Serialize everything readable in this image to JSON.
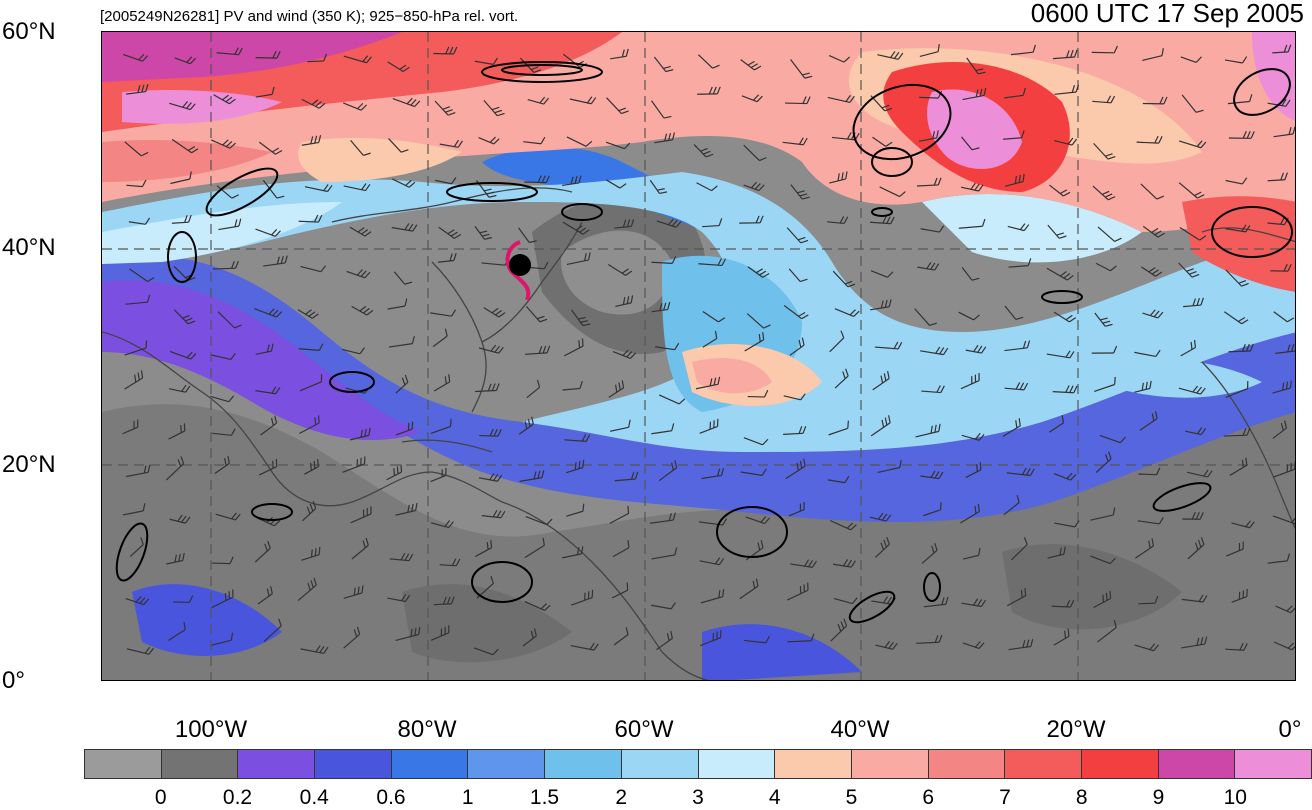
{
  "header": {
    "title_left": "[2005249N26281] PV and wind (350 K); 925−850-hPa rel. vort.",
    "title_right": "0600 UTC 17 Sep 2005"
  },
  "axes": {
    "lat_labels": [
      "60°N",
      "40°N",
      "20°N",
      "0°"
    ],
    "lon_labels": [
      "100°W",
      "80°W",
      "60°W",
      "40°W",
      "20°W",
      "0°"
    ]
  },
  "colorbar": {
    "colors": [
      "#9b9b9b",
      "#737373",
      "#7b4fe0",
      "#4a55dd",
      "#3a77e6",
      "#5f95ec",
      "#6fc0ea",
      "#9bd6f5",
      "#c8ecfb",
      "#fbc9ab",
      "#f8aaa3",
      "#f48585",
      "#f45b5b",
      "#f33f3f",
      "#cc47a8",
      "#ed8ed8"
    ],
    "labels": [
      "0",
      "0.2",
      "0.4",
      "0.6",
      "1",
      "1.5",
      "2",
      "3",
      "4",
      "5",
      "6",
      "7",
      "8",
      "9",
      "10"
    ]
  },
  "map": {
    "extent_lon": [
      -110,
      0
    ],
    "extent_lat": [
      0,
      60
    ],
    "storm_marker_color": "#e0146a"
  }
}
